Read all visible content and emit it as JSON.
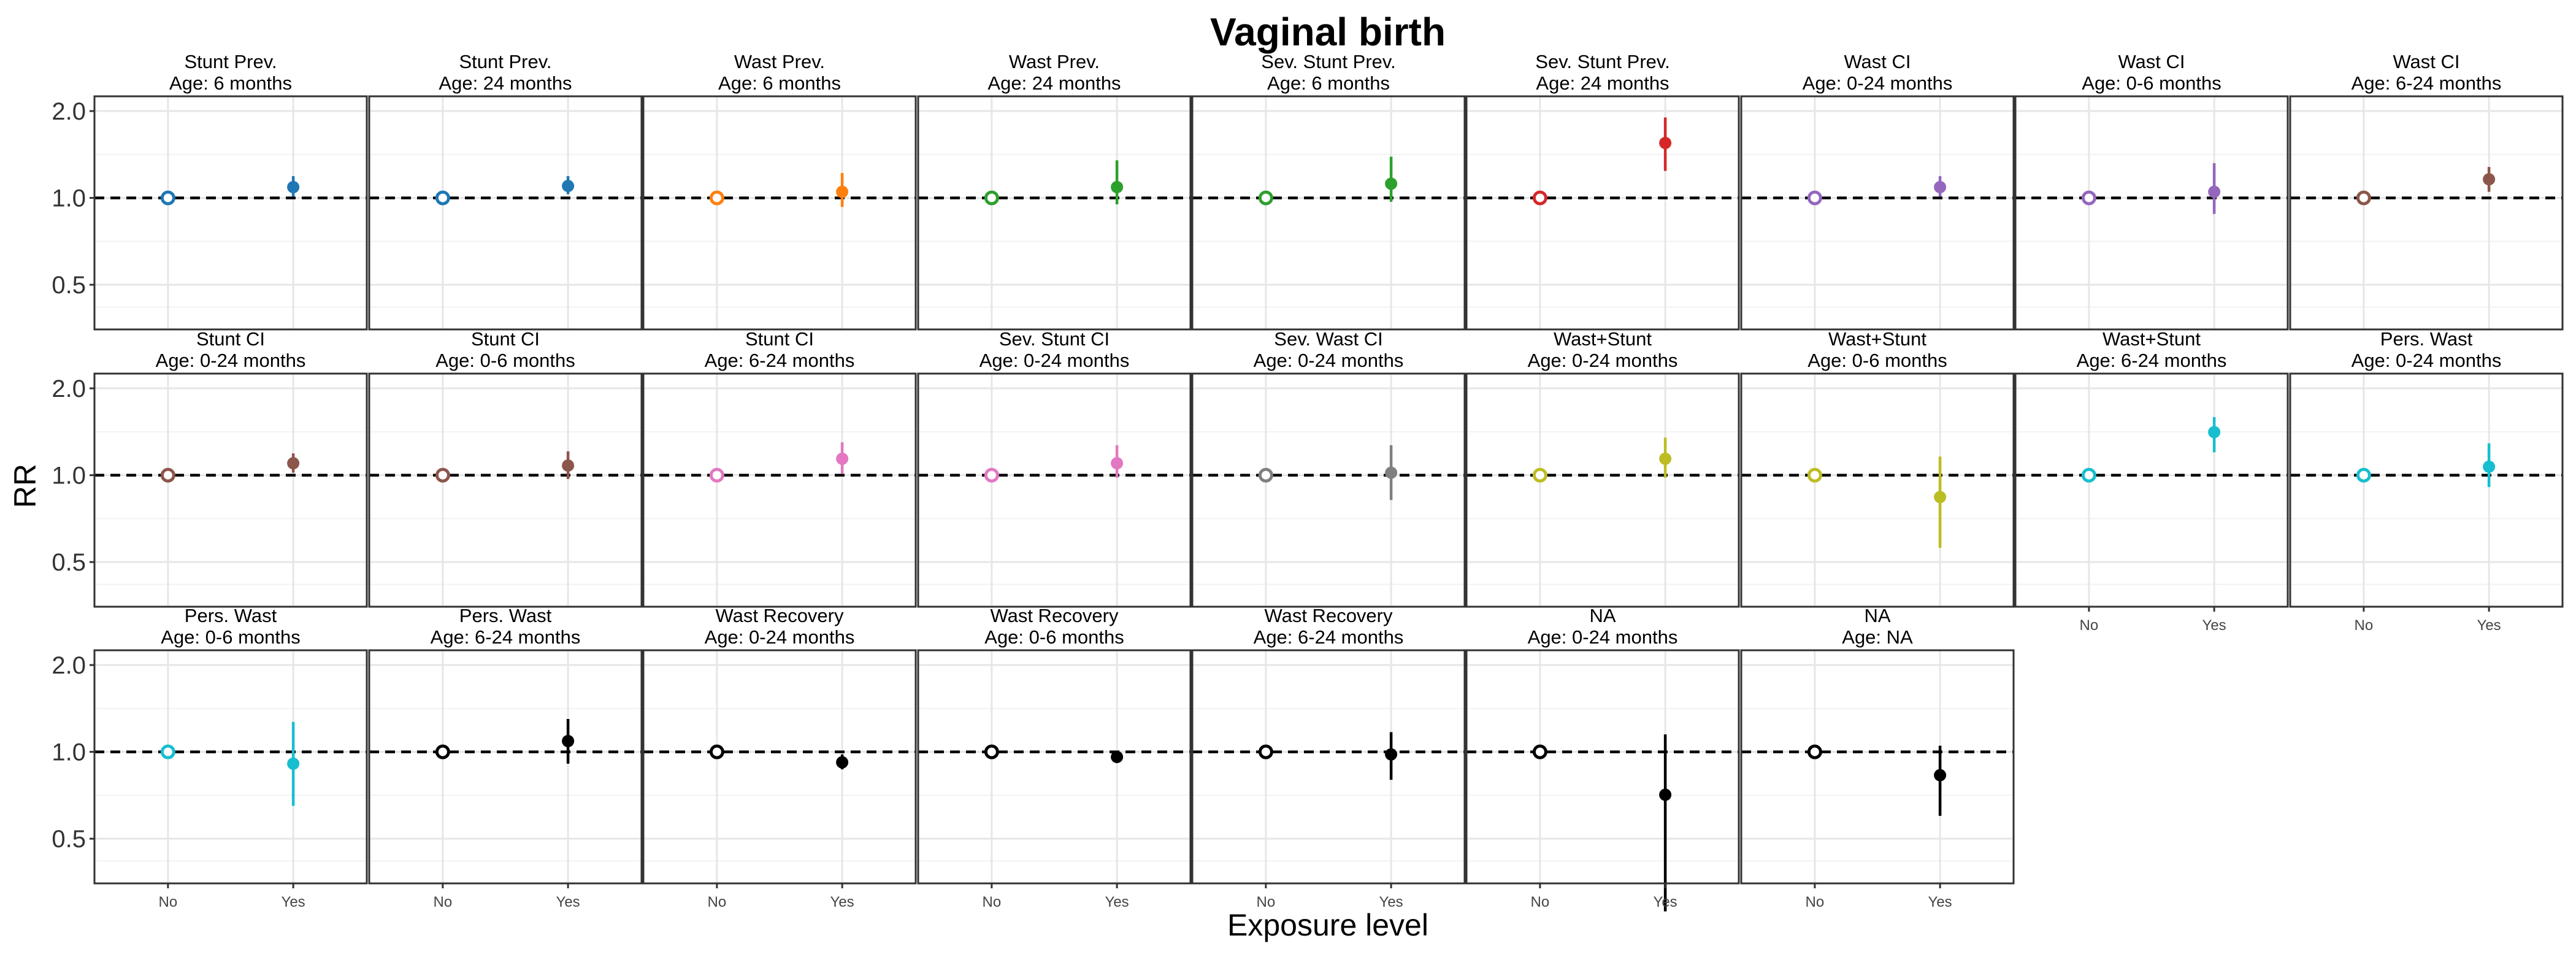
{
  "chart_data": {
    "type": "scatter",
    "title": "Vaginal birth",
    "xlabel": "Exposure level",
    "ylabel": "RR",
    "y_scale": "log",
    "y_ticks": [
      "0.5",
      "1.0",
      "2.0"
    ],
    "ylim": [
      0.35,
      2.25
    ],
    "x_categories": [
      "No",
      "Yes"
    ],
    "reference_line": 1.0,
    "grid": true,
    "facets": [
      {
        "label1": "Stunt Prev.",
        "label2": "Age: 6 months",
        "color": "#1f77b4",
        "yes": {
          "rr": 1.09,
          "lo": 1.01,
          "hi": 1.19
        }
      },
      {
        "label1": "Stunt Prev.",
        "label2": "Age: 24 months",
        "color": "#1f77b4",
        "yes": {
          "rr": 1.1,
          "lo": 1.03,
          "hi": 1.19
        }
      },
      {
        "label1": "Wast Prev.",
        "label2": "Age: 6 months",
        "color": "#ff7f0e",
        "yes": {
          "rr": 1.05,
          "lo": 0.93,
          "hi": 1.22
        }
      },
      {
        "label1": "Wast Prev.",
        "label2": "Age: 24 months",
        "color": "#2ca02c",
        "yes": {
          "rr": 1.09,
          "lo": 0.95,
          "hi": 1.35
        }
      },
      {
        "label1": "Sev. Stunt Prev.",
        "label2": "Age: 6 months",
        "color": "#2ca02c",
        "yes": {
          "rr": 1.12,
          "lo": 0.97,
          "hi": 1.39
        }
      },
      {
        "label1": "Sev. Stunt Prev.",
        "label2": "Age: 24 months",
        "color": "#d62728",
        "yes": {
          "rr": 1.55,
          "lo": 1.24,
          "hi": 1.9
        }
      },
      {
        "label1": "Wast CI",
        "label2": "Age: 0-24 months",
        "color": "#9467bd",
        "yes": {
          "rr": 1.09,
          "lo": 1.01,
          "hi": 1.19
        }
      },
      {
        "label1": "Wast CI",
        "label2": "Age: 0-6 months",
        "color": "#9467bd",
        "yes": {
          "rr": 1.05,
          "lo": 0.88,
          "hi": 1.32
        }
      },
      {
        "label1": "Wast CI",
        "label2": "Age: 6-24 months",
        "color": "#8c564b",
        "yes": {
          "rr": 1.16,
          "lo": 1.05,
          "hi": 1.28
        }
      },
      {
        "label1": "Stunt CI",
        "label2": "Age: 0-24 months",
        "color": "#8c564b",
        "yes": {
          "rr": 1.1,
          "lo": 1.02,
          "hi": 1.19
        }
      },
      {
        "label1": "Stunt CI",
        "label2": "Age: 0-6 months",
        "color": "#8c564b",
        "yes": {
          "rr": 1.08,
          "lo": 0.97,
          "hi": 1.21
        }
      },
      {
        "label1": "Stunt CI",
        "label2": "Age: 6-24 months",
        "color": "#e377c2",
        "yes": {
          "rr": 1.14,
          "lo": 1.01,
          "hi": 1.3
        }
      },
      {
        "label1": "Sev. Stunt CI",
        "label2": "Age: 0-24 months",
        "color": "#e377c2",
        "yes": {
          "rr": 1.1,
          "lo": 0.98,
          "hi": 1.27
        }
      },
      {
        "label1": "Sev. Wast CI",
        "label2": "Age: 0-24 months",
        "color": "#7f7f7f",
        "yes": {
          "rr": 1.02,
          "lo": 0.82,
          "hi": 1.27
        }
      },
      {
        "label1": "Wast+Stunt",
        "label2": "Age: 0-24 months",
        "color": "#bcbd22",
        "yes": {
          "rr": 1.14,
          "lo": 0.98,
          "hi": 1.35
        }
      },
      {
        "label1": "Wast+Stunt",
        "label2": "Age: 0-6 months",
        "color": "#bcbd22",
        "yes": {
          "rr": 0.84,
          "lo": 0.56,
          "hi": 1.16
        }
      },
      {
        "label1": "Wast+Stunt",
        "label2": "Age: 6-24 months",
        "color": "#17becf",
        "yes": {
          "rr": 1.41,
          "lo": 1.2,
          "hi": 1.59
        }
      },
      {
        "label1": "Pers. Wast",
        "label2": "Age: 0-24 months",
        "color": "#17becf",
        "yes": {
          "rr": 1.07,
          "lo": 0.91,
          "hi": 1.29
        }
      },
      {
        "label1": "Pers. Wast",
        "label2": "Age: 0-6 months",
        "color": "#17becf",
        "yes": {
          "rr": 0.91,
          "lo": 0.65,
          "hi": 1.27
        }
      },
      {
        "label1": "Pers. Wast",
        "label2": "Age: 6-24 months",
        "color": "#000000",
        "yes": {
          "rr": 1.09,
          "lo": 0.91,
          "hi": 1.3
        }
      },
      {
        "label1": "Wast Recovery",
        "label2": "Age: 0-24 months",
        "color": "#000000",
        "yes": {
          "rr": 0.92,
          "lo": 0.87,
          "hi": 0.98
        }
      },
      {
        "label1": "Wast Recovery",
        "label2": "Age: 0-6 months",
        "color": "#000000",
        "yes": {
          "rr": 0.96,
          "lo": 0.93,
          "hi": 0.99
        }
      },
      {
        "label1": "Wast Recovery",
        "label2": "Age: 6-24 months",
        "color": "#000000",
        "yes": {
          "rr": 0.98,
          "lo": 0.8,
          "hi": 1.17
        }
      },
      {
        "label1": "NA",
        "label2": "Age: 0-24 months",
        "color": "#000000",
        "yes": {
          "rr": 0.71,
          "lo": 0.28,
          "hi": 1.15
        }
      },
      {
        "label1": "NA",
        "label2": "Age: NA",
        "color": "#000000",
        "yes": {
          "rr": 0.83,
          "lo": 0.6,
          "hi": 1.05
        }
      }
    ]
  }
}
